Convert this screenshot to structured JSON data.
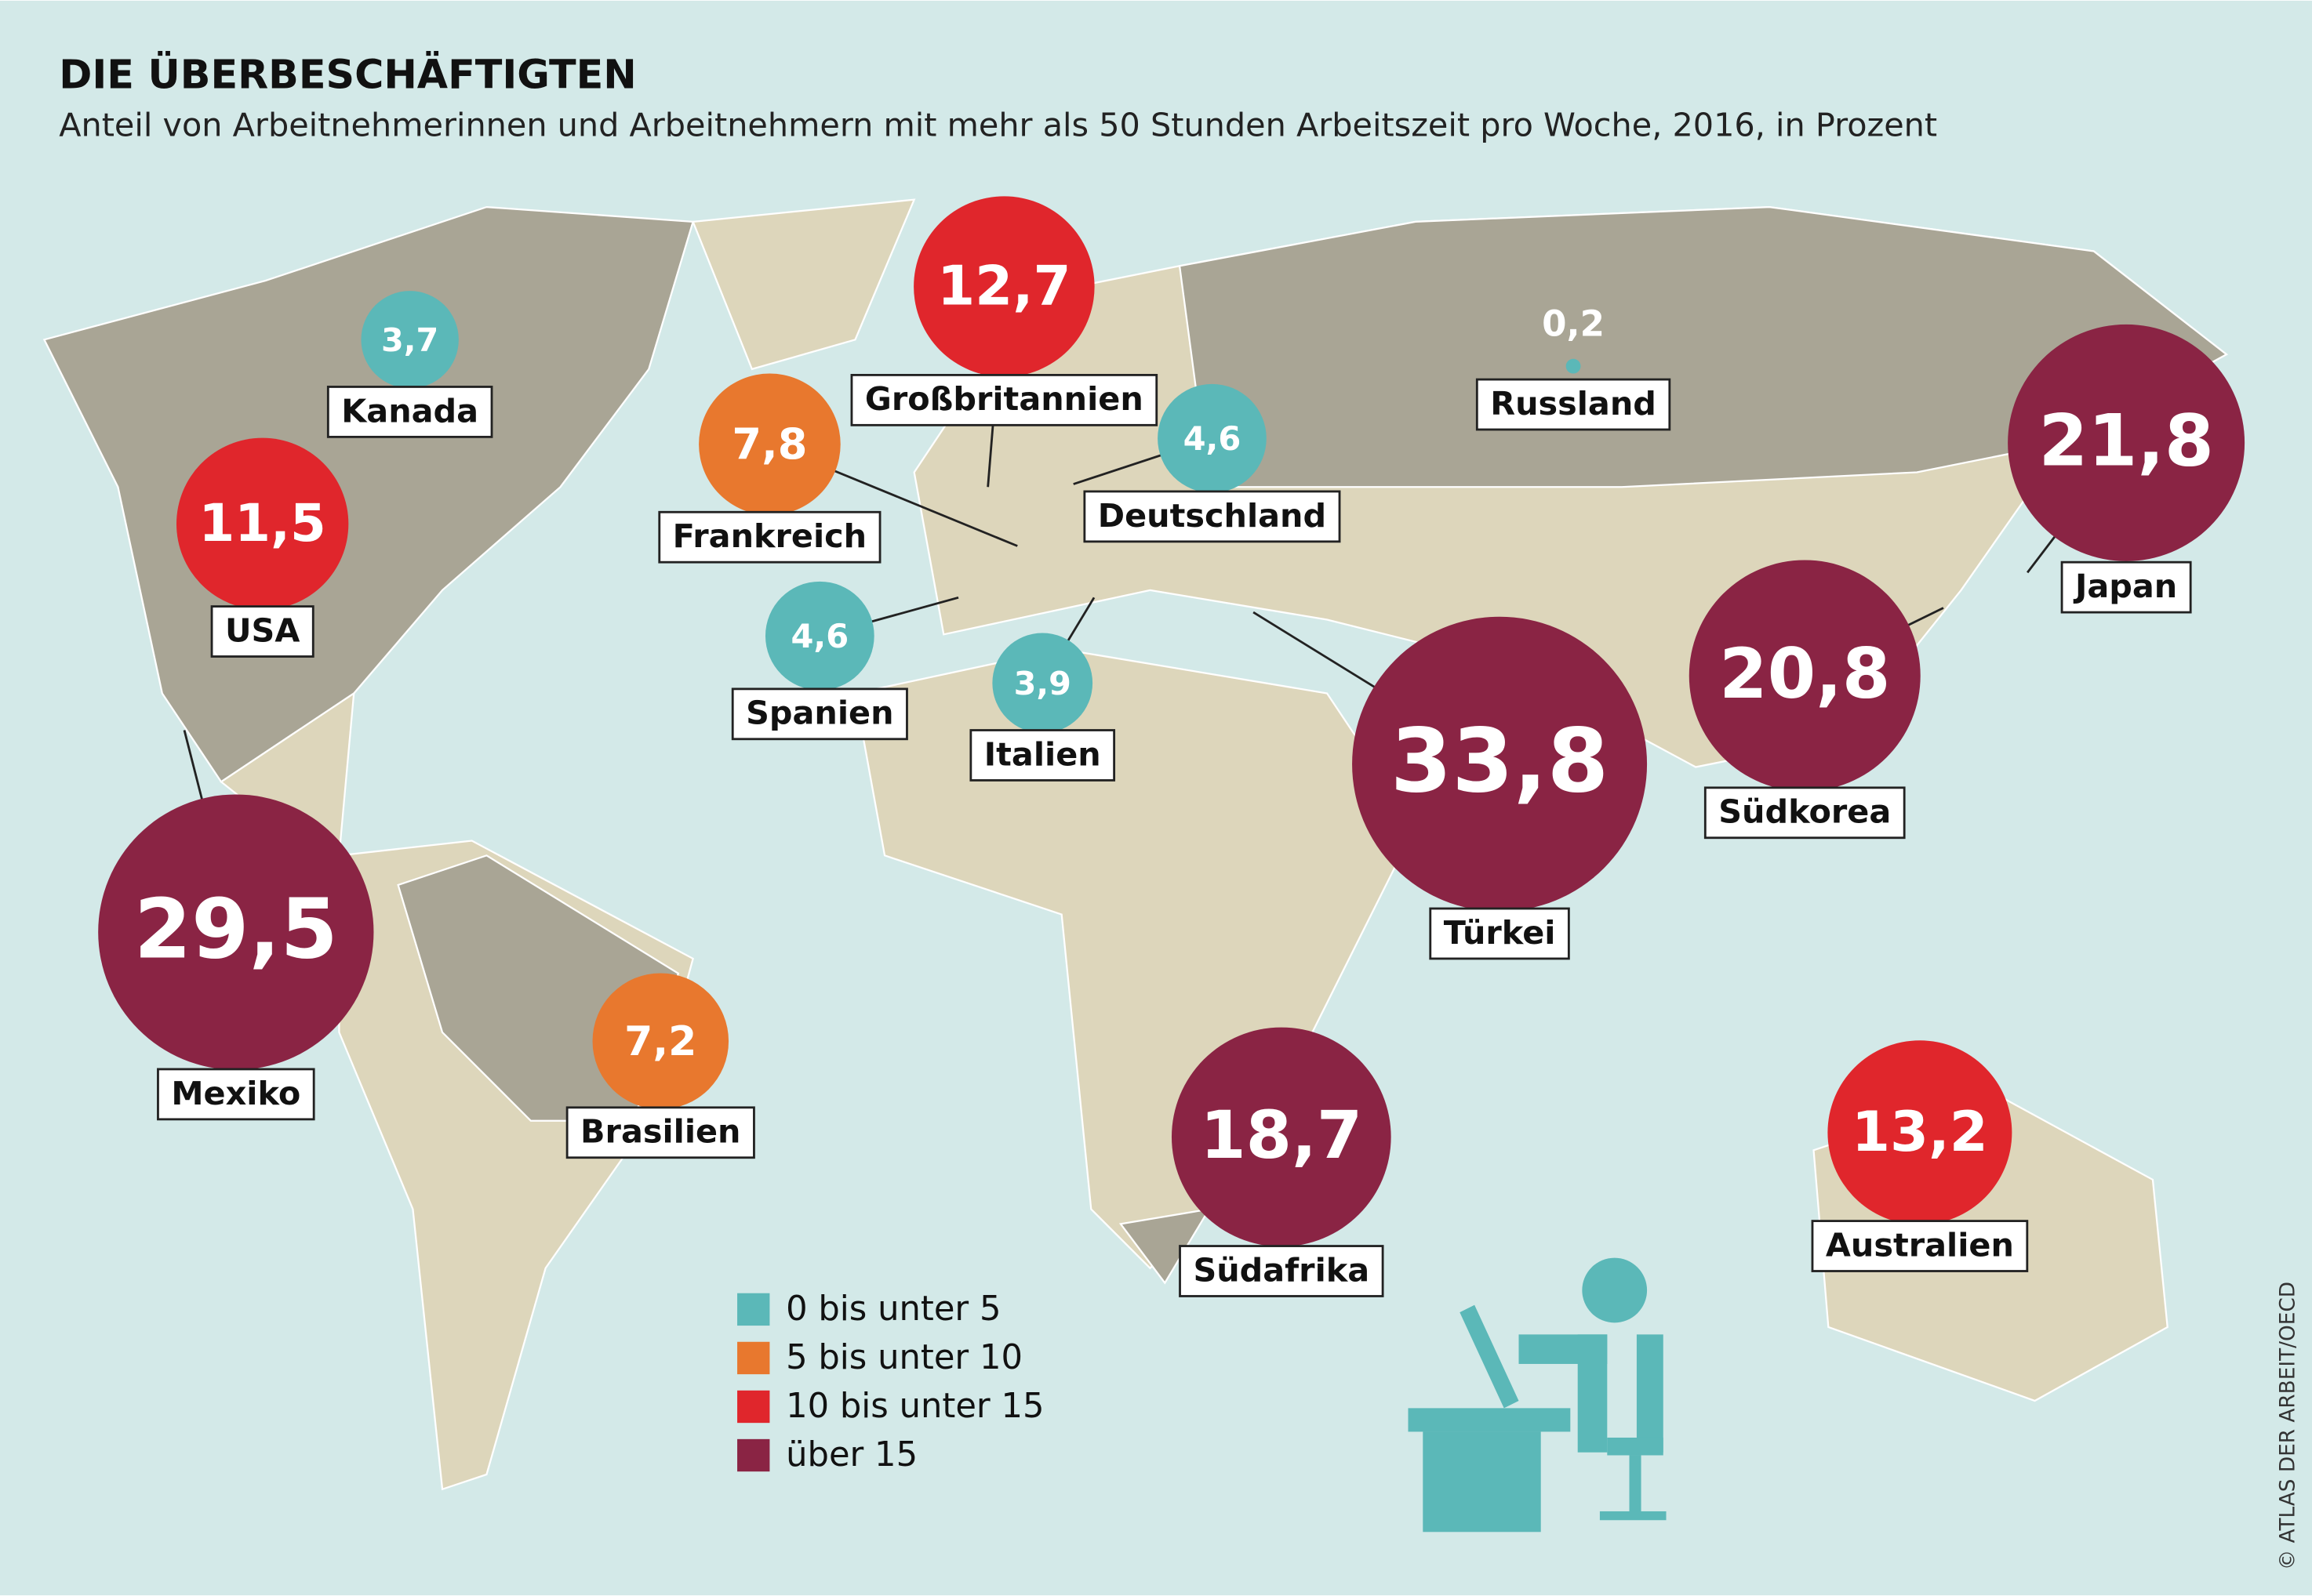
{
  "map": {
    "title": "DIE ÜBERBESCHÄFTIGTEN",
    "subtitle": "Anteil von Arbeitnehmerinnen und Arbeitnehmern mit mehr als 50 Stunden Arbeitszeit pro Woche, 2016, in Prozent",
    "countries": [
      {
        "name": "Kanada",
        "value": 3.7,
        "value_label": "3,7",
        "color": "#5bb8b8"
      },
      {
        "name": "USA",
        "value": 11.5,
        "value_label": "11,5",
        "color": "#e0262c"
      },
      {
        "name": "Mexiko",
        "value": 29.5,
        "value_label": "29,5",
        "color": "#8a2444"
      },
      {
        "name": "Brasilien",
        "value": 7.2,
        "value_label": "7,2",
        "color": "#e8782e"
      },
      {
        "name": "Großbritannien",
        "value": 12.7,
        "value_label": "12,7",
        "color": "#e0262c"
      },
      {
        "name": "Frankreich",
        "value": 7.8,
        "value_label": "7,8",
        "color": "#e8782e"
      },
      {
        "name": "Deutschland",
        "value": 4.6,
        "value_label": "4,6",
        "color": "#5bb8b8"
      },
      {
        "name": "Spanien",
        "value": 4.6,
        "value_label": "4,6",
        "color": "#5bb8b8"
      },
      {
        "name": "Italien",
        "value": 3.9,
        "value_label": "3,9",
        "color": "#5bb8b8"
      },
      {
        "name": "Russland",
        "value": 0.2,
        "value_label": "0,2",
        "color": "#5bb8b8"
      },
      {
        "name": "Japan",
        "value": 21.8,
        "value_label": "21,8",
        "color": "#8a2444"
      },
      {
        "name": "Südkorea",
        "value": 20.8,
        "value_label": "20,8",
        "color": "#8a2444"
      },
      {
        "name": "Türkei",
        "value": 33.8,
        "value_label": "33,8",
        "color": "#8a2444"
      },
      {
        "name": "Südafrika",
        "value": 18.7,
        "value_label": "18,7",
        "color": "#8a2444"
      },
      {
        "name": "Australien",
        "value": 13.2,
        "value_label": "13,2",
        "color": "#e0262c"
      }
    ],
    "legend": [
      {
        "label": "0 bis unter 5",
        "color": "#5bb8b8"
      },
      {
        "label": "5 bis unter 10",
        "color": "#e8782e"
      },
      {
        "label": "10 bis unter 15",
        "color": "#e0262c"
      },
      {
        "label": "über 15",
        "color": "#8a2444"
      }
    ],
    "source": "© ATLAS DER ARBEIT/OECD"
  }
}
